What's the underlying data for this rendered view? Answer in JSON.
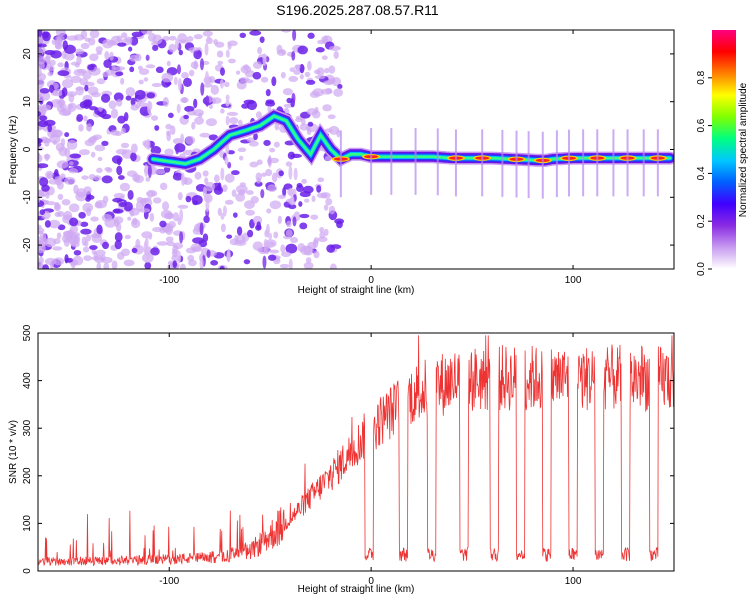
{
  "title": "S196.2025.287.08.57.R11",
  "chart_data": [
    {
      "type": "heatmap",
      "name": "spectrogram",
      "xlabel": "Height of straight line (km)",
      "ylabel": "Frequency (Hz)",
      "xlim": [
        -165,
        150
      ],
      "ylim": [
        -25,
        25
      ],
      "xticks": [
        -100,
        0,
        100
      ],
      "yticks": [
        -20,
        -10,
        0,
        10,
        20
      ],
      "colorbar": {
        "label": "Normalized spectral amplitude",
        "range": [
          0,
          1
        ],
        "ticks": [
          0.0,
          0.2,
          0.4,
          0.6,
          0.8
        ],
        "tick_labels": [
          "0.0",
          "0.2",
          "0.4",
          "0.6",
          "0.8"
        ],
        "colors": [
          "#ffffff",
          "#c89bf0",
          "#8a2be2",
          "#4000ff",
          "#0060ff",
          "#00c8ff",
          "#00ff80",
          "#80ff00",
          "#ffff00",
          "#ff8000",
          "#ff0000",
          "#ff0080"
        ]
      },
      "ridge": {
        "x": [
          -108,
          -100,
          -92,
          -85,
          -78,
          -70,
          -62,
          -55,
          -48,
          -42,
          -36,
          -30,
          -25,
          -20,
          -15,
          -10,
          -5,
          0,
          10,
          20,
          30,
          40,
          50,
          60,
          70,
          80,
          86,
          90,
          100,
          110,
          120,
          130,
          140,
          148
        ],
        "y": [
          -2,
          -2.5,
          -3,
          -2,
          0,
          3,
          4,
          5,
          7,
          6,
          2,
          -1,
          3,
          0,
          -2,
          -1,
          -1,
          -1.5,
          -1.5,
          -1.5,
          -1.5,
          -1.8,
          -1.8,
          -1.8,
          -2,
          -2.2,
          -2.3,
          -2,
          -1.8,
          -1.8,
          -1.8,
          -1.8,
          -1.8,
          -1.8
        ]
      },
      "hot_segments_x": [
        -15,
        0,
        42,
        55,
        72,
        85,
        98,
        112,
        127,
        142
      ]
    },
    {
      "type": "line",
      "name": "snr",
      "xlabel": "Height of straight line (km)",
      "ylabel": "SNR (10 * v/v)",
      "xlim": [
        -165,
        150
      ],
      "ylim": [
        0,
        500
      ],
      "xticks": [
        -100,
        0,
        100
      ],
      "yticks": [
        0,
        100,
        200,
        300,
        400,
        500
      ],
      "color": "#ee3333",
      "series_description": "noisy SNR trace",
      "envelope": {
        "x": [
          -165,
          -120,
          -80,
          -60,
          -40,
          -20,
          0,
          20,
          40,
          60,
          80,
          100,
          120,
          150
        ],
        "y": [
          20,
          22,
          28,
          40,
          110,
          200,
          300,
          370,
          400,
          405,
          405,
          405,
          405,
          405
        ]
      },
      "dropout_x": [
        -1,
        16,
        30,
        46,
        61,
        74,
        87,
        100,
        113,
        126,
        140
      ],
      "dropout_level": 20
    }
  ]
}
